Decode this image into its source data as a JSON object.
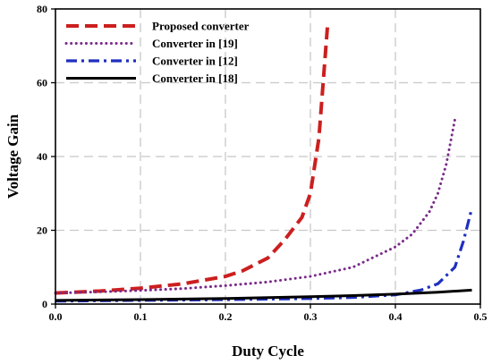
{
  "chart_data": {
    "type": "line",
    "title": "",
    "xlabel": "Duty Cycle",
    "ylabel": "Voltage Gain",
    "xlim": [
      0,
      0.5
    ],
    "ylim": [
      0,
      80
    ],
    "xticks": [
      "0.0",
      "0.1",
      "0.2",
      "0.3",
      "0.4",
      "0.5"
    ],
    "yticks": [
      "0",
      "20",
      "40",
      "60",
      "80"
    ],
    "grid": true,
    "legend_position": "top-left",
    "series": [
      {
        "name": "Proposed converter",
        "color": "#cc1f1f",
        "style": "dashed",
        "x": [
          0.0,
          0.05,
          0.1,
          0.15,
          0.2,
          0.22,
          0.25,
          0.27,
          0.29,
          0.3,
          0.31,
          0.315,
          0.32
        ],
        "y": [
          3.0,
          3.5,
          4.3,
          5.5,
          7.5,
          9.0,
          12.5,
          17.5,
          23.5,
          30.0,
          45.0,
          60.0,
          75.0
        ]
      },
      {
        "name": "Converter in [19]",
        "color": "#7a2a8a",
        "style": "dotted",
        "x": [
          0.0,
          0.05,
          0.1,
          0.15,
          0.2,
          0.25,
          0.3,
          0.35,
          0.4,
          0.42,
          0.44,
          0.45,
          0.46,
          0.465,
          0.47
        ],
        "y": [
          3.0,
          3.3,
          3.7,
          4.2,
          5.0,
          6.0,
          7.5,
          10.0,
          15.5,
          19.0,
          25.0,
          30.0,
          38.0,
          44.0,
          50.0
        ]
      },
      {
        "name": "Converter in [12]",
        "color": "#1f2fbf",
        "style": "dashdot",
        "x": [
          0.0,
          0.1,
          0.2,
          0.3,
          0.35,
          0.4,
          0.43,
          0.45,
          0.47,
          0.48,
          0.49
        ],
        "y": [
          0.8,
          1.0,
          1.2,
          1.5,
          1.8,
          2.5,
          3.8,
          5.5,
          10.0,
          17.0,
          26.0
        ]
      },
      {
        "name": "Converter in [18]",
        "color": "#000000",
        "style": "solid",
        "x": [
          0.0,
          0.1,
          0.2,
          0.3,
          0.35,
          0.4,
          0.45,
          0.49
        ],
        "y": [
          1.0,
          1.2,
          1.5,
          2.0,
          2.3,
          2.7,
          3.2,
          3.8
        ]
      }
    ]
  }
}
